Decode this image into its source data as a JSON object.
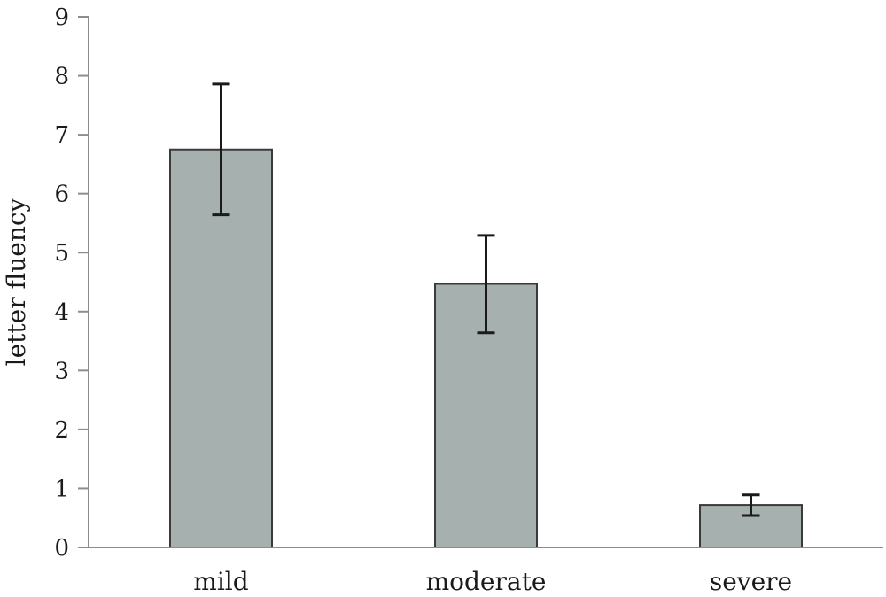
{
  "chart_data": {
    "type": "bar",
    "title": "",
    "xlabel": "",
    "ylabel": "letter fluency",
    "categories": [
      "mild",
      "moderate",
      "severe"
    ],
    "values": [
      6.75,
      4.47,
      0.72
    ],
    "error_bars": {
      "upper": [
        7.86,
        5.29,
        0.89
      ],
      "lower": [
        5.64,
        3.64,
        0.54
      ]
    },
    "ylim": [
      0,
      9
    ],
    "yticks": [
      "0",
      "1",
      "2",
      "3",
      "4",
      "5",
      "6",
      "7",
      "8",
      "9"
    ],
    "grid": false,
    "legend": "none",
    "colors": {
      "bar_fill": "#a6b0ae",
      "bar_stroke": "#3a3a3a",
      "axis": "#8a8f8d",
      "error_bar": "#1a1a1a"
    }
  }
}
